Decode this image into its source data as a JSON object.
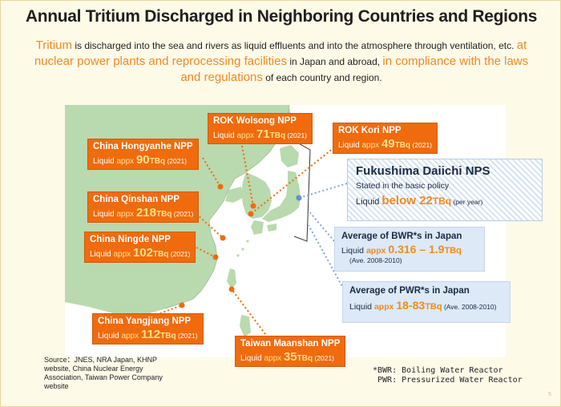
{
  "title": "Annual Tritium Discharged in Neighboring Countries and Regions",
  "intro": {
    "p1": "Tritium",
    "p2": " is discharged into the sea and rivers as liquid effluents and into the atmosphere through ventilation, etc. ",
    "p3": "at nuclear power plants and reprocessing facilities",
    "p4": " in Japan and abroad, ",
    "p5": "in compliance with the laws and regulations",
    "p6": " of each country and region."
  },
  "plants": {
    "wolsong": {
      "name": "ROK Wolsong NPP",
      "liquid": "Liquid ",
      "appx": "appx ",
      "value": "71",
      "unit": "TBq",
      "year": " (2021)"
    },
    "kori": {
      "name": "ROK Kori NPP",
      "liquid": "Liquid ",
      "appx": "appx ",
      "value": "49",
      "unit": "TBq",
      "year": " (2021)"
    },
    "hongyanhe": {
      "name": "China Hongyanhe NPP",
      "liquid": "Liquid ",
      "appx": "appx ",
      "value": "90",
      "unit": "TBq",
      "year": " (2021)"
    },
    "qinshan": {
      "name": "China Qinshan NPP",
      "liquid": "Liquid ",
      "appx": "appx ",
      "value": "218",
      "unit": "TBq",
      "year": " (2021)"
    },
    "ningde": {
      "name": "China Ningde NPP",
      "liquid": "Liquid ",
      "appx": "appx ",
      "value": "102",
      "unit": "TBq",
      "year": " (2021)"
    },
    "yangjiang": {
      "name": "China Yangjiang NPP",
      "liquid": "Liquid ",
      "appx": "appx ",
      "value": "112",
      "unit": "TBq",
      "year": " (2021)"
    },
    "maanshan": {
      "name": "Taiwan Maanshan  NPP",
      "liquid": "Liquid ",
      "appx": "appx ",
      "value": "35",
      "unit": "TBq",
      "year": " (2021)"
    }
  },
  "fukushima": {
    "name": "Fukushima Daiichi NPS",
    "sub": "Stated in the basic policy",
    "liquid": "Liquid ",
    "below": "below ",
    "value": "22",
    "unit": "TBq",
    "year": " (per year)"
  },
  "bwr": {
    "name": "Average of BWR*s in Japan",
    "liquid": "Liquid ",
    "appx": "appx ",
    "value": "0.316 – 1.9",
    "unit": "TBq",
    "years": "(Ave. 2008-2010)"
  },
  "pwr": {
    "name": "Average of PWR*s in Japan",
    "liquid": "Liquid ",
    "appx": "appx ",
    "value": "18-83",
    "unit": "TBq",
    "years": " (Ave. 2008-2010)"
  },
  "source": "Source：JNES, NRA Japan, KHNP website, China Nuclear Energy Association, Taiwan Power Company website",
  "notes": {
    "bwr": "*BWR: Boiling Water Reactor",
    "pwr": " PWR: Pressurized Water Reactor"
  },
  "page_number": "5",
  "colors": {
    "land": "#b9d9ae",
    "sea": "#ffffff",
    "label_box": "#f06b0e",
    "highlight": "#f08a24",
    "japan_box": "#dde9f6"
  }
}
